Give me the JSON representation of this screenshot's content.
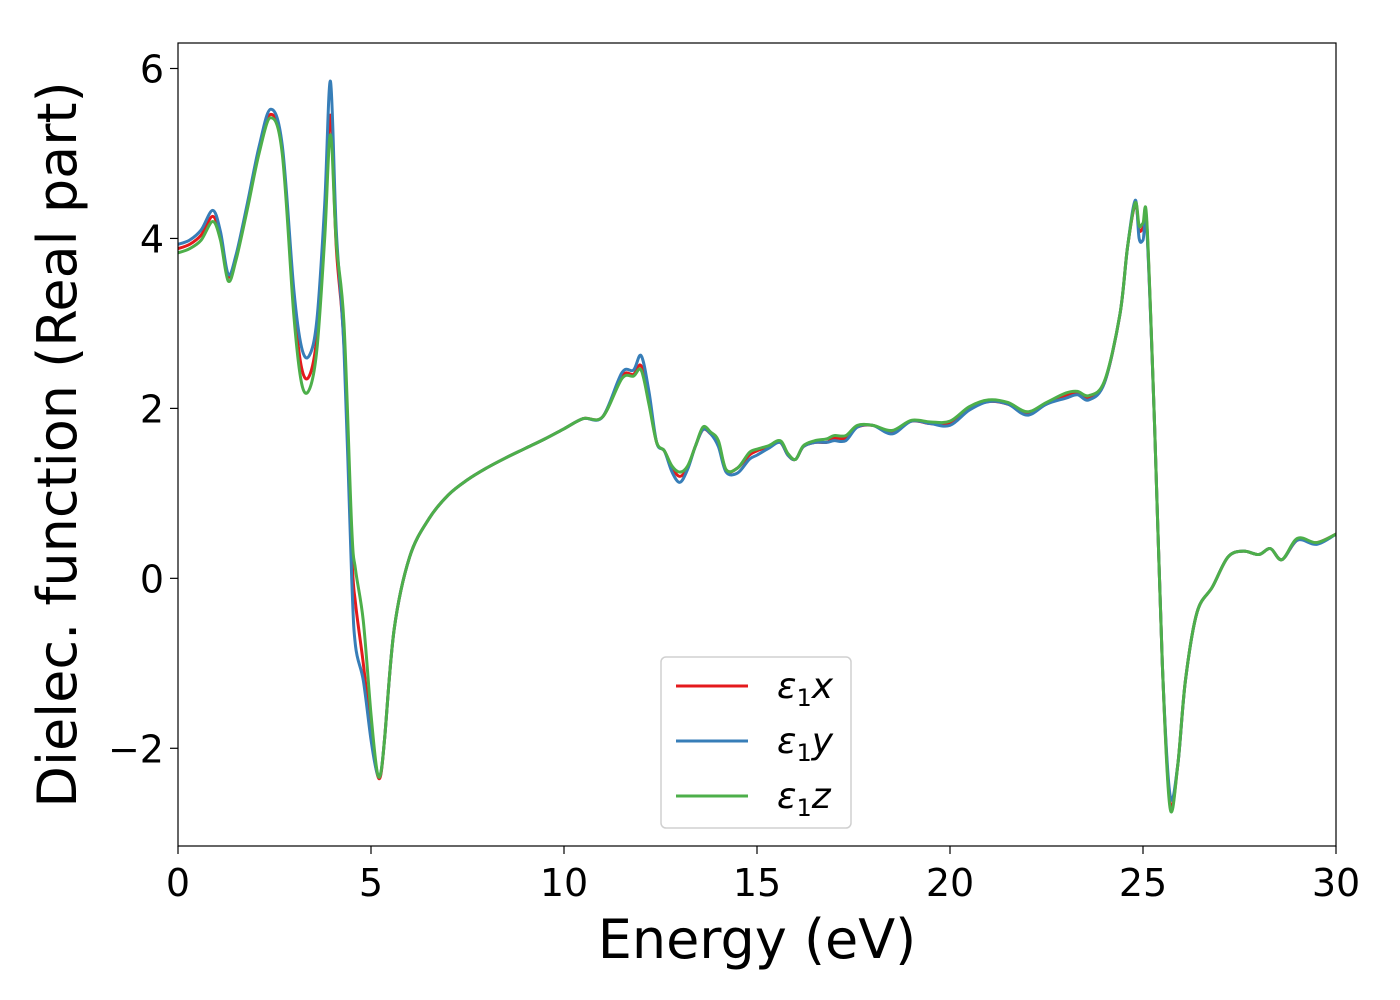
{
  "chart_data": {
    "type": "line",
    "title": "",
    "xlabel": "Energy (eV)",
    "ylabel": "Dielec. function (Real part)",
    "xlim": [
      0,
      30
    ],
    "ylim": [
      -3.15,
      6.3
    ],
    "xticks": [
      0,
      5,
      10,
      15,
      20,
      25,
      30
    ],
    "yticks": [
      -2,
      0,
      2,
      4,
      6
    ],
    "xtick_labels": [
      "0",
      "5",
      "10",
      "15",
      "20",
      "25",
      "30"
    ],
    "ytick_labels": [
      "−2",
      "0",
      "2",
      "4",
      "6"
    ],
    "grid": false,
    "legend_position": "bottom-center",
    "series": [
      {
        "name_symbol": "ε",
        "name_sub": "1",
        "name_suffix": "x",
        "color": "#e41a1c",
        "x": [
          0,
          0.3,
          0.6,
          0.9,
          1.1,
          1.3,
          1.5,
          1.8,
          2.1,
          2.4,
          2.7,
          3.0,
          3.2,
          3.4,
          3.6,
          3.8,
          3.95,
          4.1,
          4.3,
          4.5,
          4.6,
          4.8,
          5.0,
          5.15,
          5.25,
          5.35,
          5.6,
          6.0,
          6.5,
          7.0,
          7.5,
          8.0,
          8.5,
          9.0,
          9.5,
          10.0,
          10.5,
          11.0,
          11.5,
          11.8,
          12.0,
          12.2,
          12.4,
          12.6,
          12.8,
          13.0,
          13.2,
          13.4,
          13.6,
          13.8,
          14.0,
          14.2,
          14.5,
          14.8,
          15.0,
          15.3,
          15.6,
          15.8,
          16.0,
          16.2,
          16.5,
          16.8,
          17.0,
          17.3,
          17.6,
          18.0,
          18.5,
          19.0,
          19.5,
          20.0,
          20.5,
          21.0,
          21.5,
          22.0,
          22.5,
          23.0,
          23.3,
          23.6,
          24.0,
          24.4,
          24.6,
          24.8,
          24.9,
          25.0,
          25.1,
          25.3,
          25.5,
          25.7,
          25.9,
          26.1,
          26.4,
          26.8,
          27.2,
          27.6,
          28.0,
          28.3,
          28.6,
          29.0,
          29.5,
          30.0
        ],
        "y": [
          3.88,
          3.93,
          4.04,
          4.26,
          4.02,
          3.55,
          3.78,
          4.38,
          5.02,
          5.46,
          5.05,
          3.25,
          2.48,
          2.38,
          2.85,
          4.15,
          5.45,
          3.9,
          2.75,
          0.3,
          -0.3,
          -1.0,
          -1.8,
          -2.28,
          -2.32,
          -1.9,
          -0.6,
          0.25,
          0.7,
          0.98,
          1.16,
          1.3,
          1.42,
          1.53,
          1.64,
          1.76,
          1.88,
          1.9,
          2.38,
          2.4,
          2.5,
          2.1,
          1.6,
          1.5,
          1.3,
          1.2,
          1.3,
          1.55,
          1.75,
          1.7,
          1.6,
          1.27,
          1.3,
          1.45,
          1.5,
          1.55,
          1.6,
          1.45,
          1.4,
          1.55,
          1.6,
          1.6,
          1.65,
          1.65,
          1.78,
          1.8,
          1.72,
          1.85,
          1.82,
          1.82,
          2.0,
          2.08,
          2.05,
          1.95,
          2.05,
          2.15,
          2.18,
          2.12,
          2.3,
          3.1,
          3.9,
          4.4,
          4.1,
          4.12,
          4.15,
          1.8,
          -1.0,
          -2.65,
          -2.2,
          -1.2,
          -0.4,
          -0.1,
          0.25,
          0.32,
          0.28,
          0.35,
          0.22,
          0.45,
          0.42,
          0.52
        ]
      },
      {
        "name_symbol": "ε",
        "name_sub": "1",
        "name_suffix": "y",
        "color": "#377eb8",
        "x": [
          0,
          0.3,
          0.6,
          0.9,
          1.1,
          1.3,
          1.5,
          1.8,
          2.1,
          2.4,
          2.7,
          3.0,
          3.2,
          3.4,
          3.6,
          3.8,
          3.95,
          4.1,
          4.3,
          4.5,
          4.6,
          4.8,
          5.0,
          5.15,
          5.25,
          5.35,
          5.6,
          6.0,
          6.5,
          7.0,
          7.5,
          8.0,
          8.5,
          9.0,
          9.5,
          10.0,
          10.5,
          11.0,
          11.5,
          11.8,
          12.0,
          12.2,
          12.4,
          12.6,
          12.8,
          13.0,
          13.2,
          13.4,
          13.6,
          13.8,
          14.0,
          14.2,
          14.5,
          14.8,
          15.0,
          15.3,
          15.6,
          15.8,
          16.0,
          16.2,
          16.5,
          16.8,
          17.0,
          17.3,
          17.6,
          18.0,
          18.5,
          19.0,
          19.5,
          20.0,
          20.5,
          21.0,
          21.5,
          22.0,
          22.5,
          23.0,
          23.3,
          23.6,
          24.0,
          24.4,
          24.6,
          24.8,
          24.9,
          25.0,
          25.1,
          25.3,
          25.5,
          25.7,
          25.9,
          26.1,
          26.4,
          26.8,
          27.2,
          27.6,
          28.0,
          28.3,
          28.6,
          29.0,
          29.5,
          30.0
        ],
        "y": [
          3.93,
          3.98,
          4.1,
          4.33,
          4.08,
          3.58,
          3.8,
          4.42,
          5.08,
          5.52,
          5.1,
          3.4,
          2.72,
          2.62,
          3.05,
          4.4,
          5.85,
          4.1,
          2.7,
          0.0,
          -0.8,
          -1.2,
          -1.9,
          -2.28,
          -2.3,
          -1.9,
          -0.6,
          0.25,
          0.7,
          0.98,
          1.16,
          1.3,
          1.42,
          1.53,
          1.64,
          1.76,
          1.88,
          1.9,
          2.42,
          2.45,
          2.62,
          2.2,
          1.6,
          1.5,
          1.25,
          1.13,
          1.28,
          1.55,
          1.75,
          1.7,
          1.55,
          1.25,
          1.24,
          1.4,
          1.45,
          1.53,
          1.6,
          1.45,
          1.4,
          1.55,
          1.6,
          1.6,
          1.62,
          1.62,
          1.78,
          1.8,
          1.7,
          1.85,
          1.82,
          1.8,
          1.98,
          2.08,
          2.05,
          1.92,
          2.05,
          2.12,
          2.16,
          2.1,
          2.3,
          3.1,
          3.9,
          4.45,
          4.0,
          3.98,
          4.1,
          1.8,
          -1.0,
          -2.55,
          -2.2,
          -1.2,
          -0.4,
          -0.1,
          0.25,
          0.32,
          0.28,
          0.35,
          0.22,
          0.45,
          0.4,
          0.52
        ]
      },
      {
        "name_symbol": "ε",
        "name_sub": "1",
        "name_suffix": "z",
        "color": "#4daf4a",
        "x": [
          0,
          0.3,
          0.6,
          0.9,
          1.1,
          1.3,
          1.5,
          1.8,
          2.1,
          2.4,
          2.7,
          3.0,
          3.2,
          3.4,
          3.6,
          3.8,
          3.95,
          4.1,
          4.3,
          4.5,
          4.6,
          4.8,
          5.0,
          5.15,
          5.25,
          5.35,
          5.6,
          6.0,
          6.5,
          7.0,
          7.5,
          8.0,
          8.5,
          9.0,
          9.5,
          10.0,
          10.5,
          11.0,
          11.5,
          11.8,
          12.0,
          12.2,
          12.4,
          12.6,
          12.8,
          13.0,
          13.2,
          13.4,
          13.6,
          13.8,
          14.0,
          14.2,
          14.5,
          14.8,
          15.0,
          15.3,
          15.6,
          15.8,
          16.0,
          16.2,
          16.5,
          16.8,
          17.0,
          17.3,
          17.6,
          18.0,
          18.5,
          19.0,
          19.5,
          20.0,
          20.5,
          21.0,
          21.5,
          22.0,
          22.5,
          23.0,
          23.3,
          23.6,
          24.0,
          24.4,
          24.6,
          24.8,
          24.9,
          25.0,
          25.1,
          25.3,
          25.5,
          25.7,
          25.9,
          26.1,
          26.4,
          26.8,
          27.2,
          27.6,
          28.0,
          28.3,
          28.6,
          29.0,
          29.5,
          30.0
        ],
        "y": [
          3.83,
          3.88,
          3.98,
          4.2,
          3.98,
          3.5,
          3.74,
          4.35,
          5.0,
          5.42,
          5.0,
          3.1,
          2.3,
          2.22,
          2.7,
          4.0,
          5.22,
          3.95,
          3.0,
          0.6,
          0.1,
          -0.5,
          -1.6,
          -2.25,
          -2.3,
          -1.9,
          -0.6,
          0.25,
          0.7,
          0.98,
          1.16,
          1.3,
          1.42,
          1.53,
          1.64,
          1.76,
          1.88,
          1.9,
          2.35,
          2.38,
          2.45,
          2.05,
          1.6,
          1.5,
          1.32,
          1.25,
          1.32,
          1.55,
          1.78,
          1.72,
          1.62,
          1.28,
          1.3,
          1.48,
          1.52,
          1.56,
          1.62,
          1.47,
          1.4,
          1.56,
          1.62,
          1.64,
          1.68,
          1.68,
          1.8,
          1.8,
          1.74,
          1.86,
          1.84,
          1.85,
          2.02,
          2.1,
          2.07,
          1.96,
          2.07,
          2.18,
          2.2,
          2.15,
          2.32,
          3.1,
          3.9,
          4.42,
          4.15,
          4.18,
          4.2,
          1.8,
          -1.0,
          -2.7,
          -2.2,
          -1.2,
          -0.4,
          -0.1,
          0.25,
          0.32,
          0.28,
          0.35,
          0.22,
          0.47,
          0.42,
          0.52
        ]
      }
    ]
  }
}
